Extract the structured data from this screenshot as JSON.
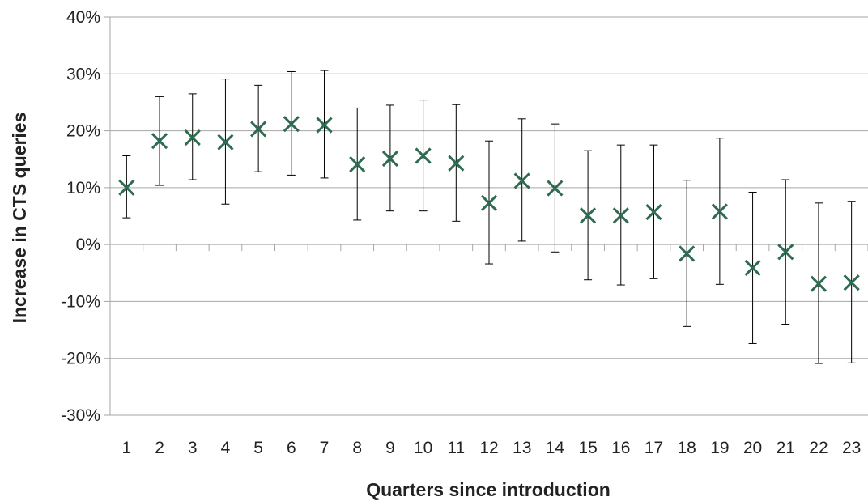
{
  "chart_data": {
    "type": "scatter",
    "title": "",
    "xlabel": "Quarters since introduction",
    "ylabel": "Increase in CTS queries",
    "ylim": [
      -30,
      40
    ],
    "ytick_step": 10,
    "ytick_suffix": "%",
    "grid": "horizontal",
    "legend": "none",
    "marker": "x",
    "colors": {
      "marker": "#2e6b50",
      "error_bar": "#000000",
      "grid": "#a6a6a6",
      "axis": "#a6a6a6"
    },
    "categories": [
      "1",
      "2",
      "3",
      "4",
      "5",
      "6",
      "7",
      "8",
      "9",
      "10",
      "11",
      "12",
      "13",
      "14",
      "15",
      "16",
      "17",
      "18",
      "19",
      "20",
      "21",
      "22",
      "23"
    ],
    "series": [
      {
        "values": [
          10.0,
          18.2,
          18.8,
          18.0,
          20.3,
          21.2,
          21.0,
          14.1,
          15.1,
          15.6,
          14.3,
          7.3,
          11.2,
          9.9,
          5.1,
          5.1,
          5.7,
          -1.6,
          5.8,
          -4.1,
          -1.3,
          -6.9,
          -6.7
        ],
        "err_low": [
          4.7,
          10.4,
          11.4,
          7.1,
          12.8,
          12.2,
          11.7,
          4.3,
          5.9,
          5.9,
          4.1,
          -3.4,
          0.6,
          -1.3,
          -6.2,
          -7.1,
          -6.0,
          -14.4,
          -7.0,
          -17.4,
          -14.0,
          -20.9,
          -20.8
        ],
        "err_high": [
          15.6,
          26.0,
          26.5,
          29.1,
          28.0,
          30.4,
          30.6,
          24.0,
          24.5,
          25.4,
          24.6,
          18.2,
          22.1,
          21.2,
          16.5,
          17.5,
          17.5,
          11.3,
          18.7,
          9.2,
          11.4,
          7.3,
          7.6
        ]
      }
    ]
  }
}
